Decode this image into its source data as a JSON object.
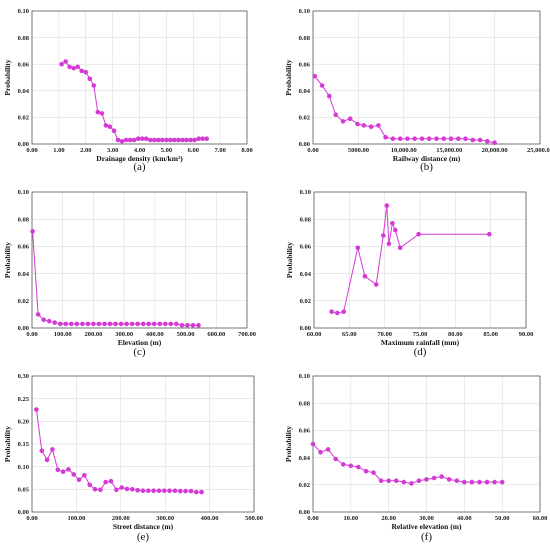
{
  "chart_data": [
    {
      "type": "line",
      "panel_label": "(a)",
      "xlabel": "Drainage density (km/km²)",
      "ylabel": "Probability",
      "xlim": [
        0,
        8
      ],
      "ylim": [
        0,
        0.1
      ],
      "xticks": [
        "0.00",
        "1.00",
        "2.00",
        "3.00",
        "4.00",
        "5.00",
        "6.00",
        "7.00",
        "8.00"
      ],
      "yticks": [
        "0.00",
        "0.02",
        "0.04",
        "0.06",
        "0.08",
        "0.10"
      ],
      "grid": true,
      "series": [
        {
          "x": [
            1.1,
            1.25,
            1.4,
            1.55,
            1.7,
            1.85,
            2.0,
            2.15,
            2.3,
            2.45,
            2.6,
            2.75,
            2.9,
            3.05,
            3.2,
            3.35,
            3.5,
            3.65,
            3.8,
            3.95,
            4.1,
            4.25,
            4.4,
            4.55,
            4.7,
            4.85,
            5.0,
            5.15,
            5.3,
            5.45,
            5.6,
            5.75,
            5.9,
            6.05,
            6.2,
            6.35,
            6.5
          ],
          "y": [
            0.06,
            0.062,
            0.058,
            0.057,
            0.058,
            0.055,
            0.054,
            0.049,
            0.044,
            0.024,
            0.023,
            0.014,
            0.013,
            0.01,
            0.003,
            0.002,
            0.003,
            0.003,
            0.003,
            0.004,
            0.004,
            0.004,
            0.003,
            0.003,
            0.003,
            0.003,
            0.003,
            0.003,
            0.003,
            0.003,
            0.003,
            0.003,
            0.003,
            0.003,
            0.004,
            0.004,
            0.004
          ]
        }
      ]
    },
    {
      "type": "line",
      "panel_label": "(b)",
      "xlabel": "Railway distance (m)",
      "ylabel": "Probability",
      "xlim": [
        0,
        25000
      ],
      "ylim": [
        0,
        0.1
      ],
      "xticks": [
        "0.00",
        "5000.00",
        "10,000.00",
        "15,000.00",
        "20,000.00",
        "25,000.00"
      ],
      "yticks": [
        "0.00",
        "0.02",
        "0.04",
        "0.06",
        "0.08",
        "0.10"
      ],
      "grid": true,
      "series": [
        {
          "x": [
            200,
            1000,
            1800,
            2500,
            3300,
            4100,
            4900,
            5600,
            6400,
            7200,
            8000,
            8800,
            9600,
            10400,
            11200,
            12000,
            12800,
            13600,
            14400,
            15200,
            16000,
            16800,
            17600,
            18400,
            19200,
            20000
          ],
          "y": [
            0.051,
            0.044,
            0.036,
            0.022,
            0.017,
            0.019,
            0.015,
            0.014,
            0.013,
            0.014,
            0.005,
            0.004,
            0.004,
            0.004,
            0.004,
            0.004,
            0.004,
            0.004,
            0.004,
            0.004,
            0.004,
            0.004,
            0.003,
            0.003,
            0.002,
            0.001
          ]
        }
      ]
    },
    {
      "type": "line",
      "panel_label": "(c)",
      "xlabel": "Elevation (m)",
      "ylabel": "Probability",
      "xlim": [
        0,
        700
      ],
      "ylim": [
        0,
        0.1
      ],
      "xticks": [
        "0.00",
        "100.00",
        "200.00",
        "300.00",
        "400.00",
        "500.00",
        "600.00",
        "700.00"
      ],
      "yticks": [
        "0.00",
        "0.02",
        "0.04",
        "0.06",
        "0.08",
        "0.10"
      ],
      "grid": true,
      "series": [
        {
          "x": [
            2,
            20,
            38,
            56,
            74,
            92,
            110,
            128,
            146,
            164,
            182,
            200,
            218,
            236,
            254,
            272,
            290,
            308,
            326,
            344,
            362,
            380,
            398,
            416,
            434,
            452,
            470,
            488,
            506,
            524,
            542
          ],
          "y": [
            0.071,
            0.01,
            0.006,
            0.005,
            0.004,
            0.003,
            0.003,
            0.003,
            0.003,
            0.003,
            0.003,
            0.003,
            0.003,
            0.003,
            0.003,
            0.003,
            0.003,
            0.003,
            0.003,
            0.003,
            0.003,
            0.003,
            0.003,
            0.003,
            0.003,
            0.003,
            0.003,
            0.002,
            0.002,
            0.002,
            0.002
          ]
        }
      ]
    },
    {
      "type": "line",
      "panel_label": "(d)",
      "xlabel": "Maximum rainfall (mm)",
      "ylabel": "Probability",
      "xlim": [
        60,
        90
      ],
      "ylim": [
        0,
        0.1
      ],
      "xticks": [
        "60.00",
        "65.00",
        "70.00",
        "75.00",
        "80.00",
        "85.00",
        "90.00"
      ],
      "yticks": [
        "0.00",
        "0.02",
        "0.04",
        "0.06",
        "0.08",
        "0.10"
      ],
      "grid": true,
      "series": [
        {
          "x": [
            62.5,
            63.3,
            64.2,
            66.2,
            67.2,
            68.8,
            69.8,
            70.3,
            70.6,
            71.1,
            71.5,
            72.2,
            74.8,
            84.8
          ],
          "y": [
            0.012,
            0.011,
            0.012,
            0.059,
            0.038,
            0.032,
            0.068,
            0.09,
            0.062,
            0.077,
            0.072,
            0.059,
            0.069,
            0.069
          ]
        }
      ]
    },
    {
      "type": "line",
      "panel_label": "(e)",
      "xlabel": "Street distance (m)",
      "ylabel": "Probability",
      "xlim": [
        0,
        500
      ],
      "ylim": [
        0,
        0.3
      ],
      "xticks": [
        "0.00",
        "100.00",
        "200.00",
        "300.00",
        "400.00",
        "500.00"
      ],
      "yticks": [
        "0.00",
        "0.05",
        "0.10",
        "0.15",
        "0.20",
        "0.25",
        "0.30"
      ],
      "grid": true,
      "series": [
        {
          "x": [
            10,
            22,
            34,
            46,
            58,
            70,
            82,
            94,
            106,
            118,
            130,
            142,
            154,
            166,
            178,
            190,
            202,
            214,
            226,
            238,
            250,
            262,
            274,
            286,
            298,
            310,
            322,
            334,
            346,
            358,
            370,
            382
          ],
          "y": [
            0.226,
            0.135,
            0.115,
            0.138,
            0.093,
            0.089,
            0.094,
            0.083,
            0.071,
            0.081,
            0.06,
            0.05,
            0.049,
            0.066,
            0.068,
            0.049,
            0.054,
            0.051,
            0.05,
            0.048,
            0.047,
            0.047,
            0.047,
            0.047,
            0.047,
            0.047,
            0.047,
            0.046,
            0.046,
            0.046,
            0.044,
            0.044
          ]
        }
      ]
    },
    {
      "type": "line",
      "panel_label": "(f)",
      "xlabel": "Relative elevation (m)",
      "ylabel": "Probability",
      "xlim": [
        0,
        60
      ],
      "ylim": [
        0,
        0.1
      ],
      "xticks": [
        "0.00",
        "10.00",
        "20.00",
        "30.00",
        "40.00",
        "50.00",
        "60.00"
      ],
      "yticks": [
        "0.00",
        "0.02",
        "0.04",
        "0.06",
        "0.08",
        "0.10"
      ],
      "grid": true,
      "series": [
        {
          "x": [
            0,
            2,
            4,
            6,
            8,
            10,
            12,
            14,
            16,
            18,
            20,
            22,
            24,
            26,
            28,
            30,
            32,
            34,
            36,
            38,
            40,
            42,
            44,
            46,
            48,
            50
          ],
          "y": [
            0.05,
            0.044,
            0.046,
            0.039,
            0.035,
            0.034,
            0.033,
            0.03,
            0.029,
            0.023,
            0.023,
            0.023,
            0.022,
            0.021,
            0.023,
            0.024,
            0.025,
            0.026,
            0.024,
            0.023,
            0.022,
            0.022,
            0.022,
            0.022,
            0.022,
            0.022
          ]
        }
      ]
    }
  ],
  "colors": {
    "series": "#d63ad6",
    "marker": "#d63ad6",
    "grid": "#d6d6d6"
  }
}
